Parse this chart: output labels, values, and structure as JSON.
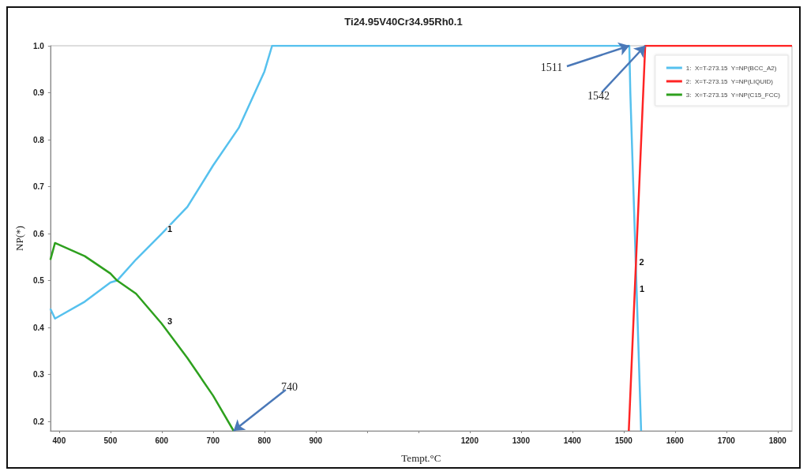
{
  "chart_data": {
    "type": "line",
    "title": "Ti24.95V40Cr34.95Rh0.1",
    "xlabel": "Tempt.°C",
    "ylabel": "NP(*)",
    "xlim": [
      383,
      1828
    ],
    "ylim": [
      0.18,
      1.0
    ],
    "xticks": [
      400,
      500,
      600,
      700,
      800,
      900,
      {
        "value": 1000,
        "label": null
      },
      {
        "value": 1100,
        "label": null
      },
      1200,
      1300,
      1400,
      1500,
      1600,
      1700,
      1800
    ],
    "yticks": [
      0.2,
      0.3,
      0.4,
      0.5,
      0.6,
      0.7,
      0.8,
      0.9,
      {
        "value": 1,
        "label": "1.0"
      }
    ],
    "grid": false,
    "legend": "top right",
    "marker": "none",
    "series": [
      {
        "name": "1:  X=T-273.15  Y=NP(BCC_A2)",
        "color": "#56c1ee",
        "x": [
          383,
          392,
          450,
          500,
          513,
          550,
          600,
          650,
          700,
          750,
          800,
          815,
          1511,
          1513,
          1534
        ],
        "values": [
          0.44,
          0.419,
          0.455,
          0.496,
          0.5,
          0.545,
          0.6,
          0.657,
          0.745,
          0.825,
          0.945,
          1.0,
          1.0,
          0.9,
          0.18
        ]
      },
      {
        "name": "2:  X=T-273.15  Y=NP(LIQUID)",
        "color": "#ff2424",
        "x": [
          1510,
          1542,
          1828
        ],
        "values": [
          0.18,
          1.0,
          1.0
        ]
      },
      {
        "name": "3:  X=T-273.15  Y=NP(C15_FCC)",
        "color": "#2ea01e",
        "x": [
          383,
          392,
          450,
          500,
          513,
          550,
          600,
          650,
          700,
          740
        ],
        "values": [
          0.544,
          0.58,
          0.552,
          0.515,
          0.5,
          0.472,
          0.408,
          0.335,
          0.255,
          0.18
        ]
      }
    ],
    "annotations": [
      {
        "text": "740",
        "x": 740,
        "y": 0.18
      },
      {
        "text": "1511",
        "x": 1511,
        "y": 1.0
      },
      {
        "text": "1542",
        "x": 1542,
        "y": 1.0
      },
      {
        "text": "1",
        "x": 605,
        "y": 0.61
      },
      {
        "text": "3",
        "x": 605,
        "y": 0.414
      },
      {
        "text": "2",
        "x": 1524,
        "y": 0.54
      },
      {
        "text": "1",
        "x": 1525,
        "y": 0.483
      }
    ]
  }
}
